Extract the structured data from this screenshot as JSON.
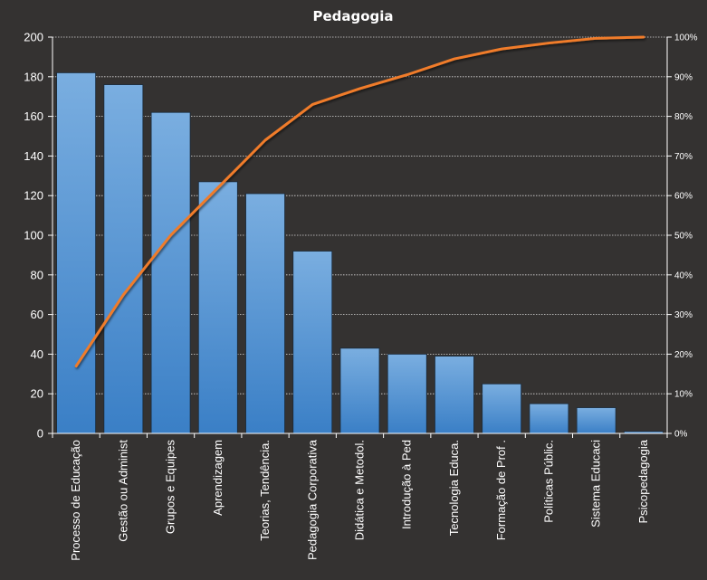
{
  "chart_data": {
    "type": "bar",
    "title": "Pedagogia",
    "categories": [
      "Processo de Educação",
      "Gestão ou Administ",
      "Grupos e Equipes",
      "Aprendizagem",
      "Teorias, Tendência.",
      "Pedagogia Corporativa",
      "Didática e Metodol.",
      "Introdução à Ped",
      "Tecnologia Educa.",
      "Formação de Prof .",
      "Políticas Públic.",
      "Sistema Educaci",
      "Psicopedagogia"
    ],
    "series": [
      {
        "type": "bar",
        "values": [
          182,
          176,
          162,
          127,
          121,
          92,
          43,
          40,
          39,
          25,
          15,
          13,
          1
        ]
      },
      {
        "type": "line",
        "axis": "secondary",
        "values": [
          17,
          35,
          50,
          62,
          74,
          83,
          87,
          90.5,
          94.5,
          97,
          98.5,
          99.7,
          100
        ]
      }
    ],
    "ylim": [
      0,
      200
    ],
    "yticks": [
      0,
      20,
      40,
      60,
      80,
      100,
      120,
      140,
      160,
      180,
      200
    ],
    "y2lim": [
      0,
      100
    ],
    "y2ticks": [
      "0%",
      "10%",
      "20%",
      "30%",
      "40%",
      "50%",
      "60%",
      "70%",
      "80%",
      "90%",
      "100%"
    ],
    "grid": true,
    "colors": {
      "bar_top": "#7aaee0",
      "bar_bottom": "#3a7fc6",
      "line": "#f07b2a",
      "background": "#343231"
    }
  }
}
